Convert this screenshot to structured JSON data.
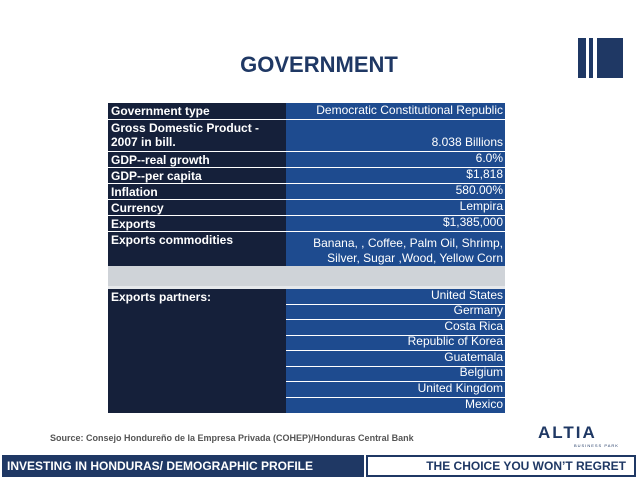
{
  "title": "GOVERNMENT",
  "government_table": [
    {
      "label": "Government type",
      "value": "Democratic Constitutional Republic"
    },
    {
      "label": "Gross Domestic Product - 2007 in bill.",
      "value": "8.038 Billions"
    },
    {
      "label": "GDP--real growth",
      "value": "6.0%"
    },
    {
      "label": "GDP--per capita",
      "value": "$1,818"
    },
    {
      "label": "Inflation",
      "value": "580.00%"
    },
    {
      "label": "Currency",
      "value": "Lempira"
    },
    {
      "label": "Exports",
      "value": "$1,385,000"
    },
    {
      "label": "Exports commodities",
      "value": "Banana, , Coffee, Palm Oil, Shrimp, Silver, Sugar ,Wood, Yellow Corn"
    }
  ],
  "partners": {
    "label": "Exports partners:",
    "values": [
      "United States",
      "Germany",
      "Costa Rica",
      "Republic of Korea",
      "Guatemala",
      "Belgium",
      "United Kingdom",
      "Mexico"
    ]
  },
  "source": "Source:  Consejo Hondureño de la Empresa Privada (COHEP)/Honduras Central Bank",
  "logo": {
    "name": "ALTIA",
    "sub": "BUSINESS PARK"
  },
  "footer": {
    "left": "INVESTING IN HONDURAS/ DEMOGRAPHIC PROFILE",
    "right": "THE CHOICE YOU WON’T REGRET"
  },
  "colors": {
    "navy": "#1f3864",
    "label_bg": "#15203a",
    "value_bg": "#1e4b8f"
  }
}
